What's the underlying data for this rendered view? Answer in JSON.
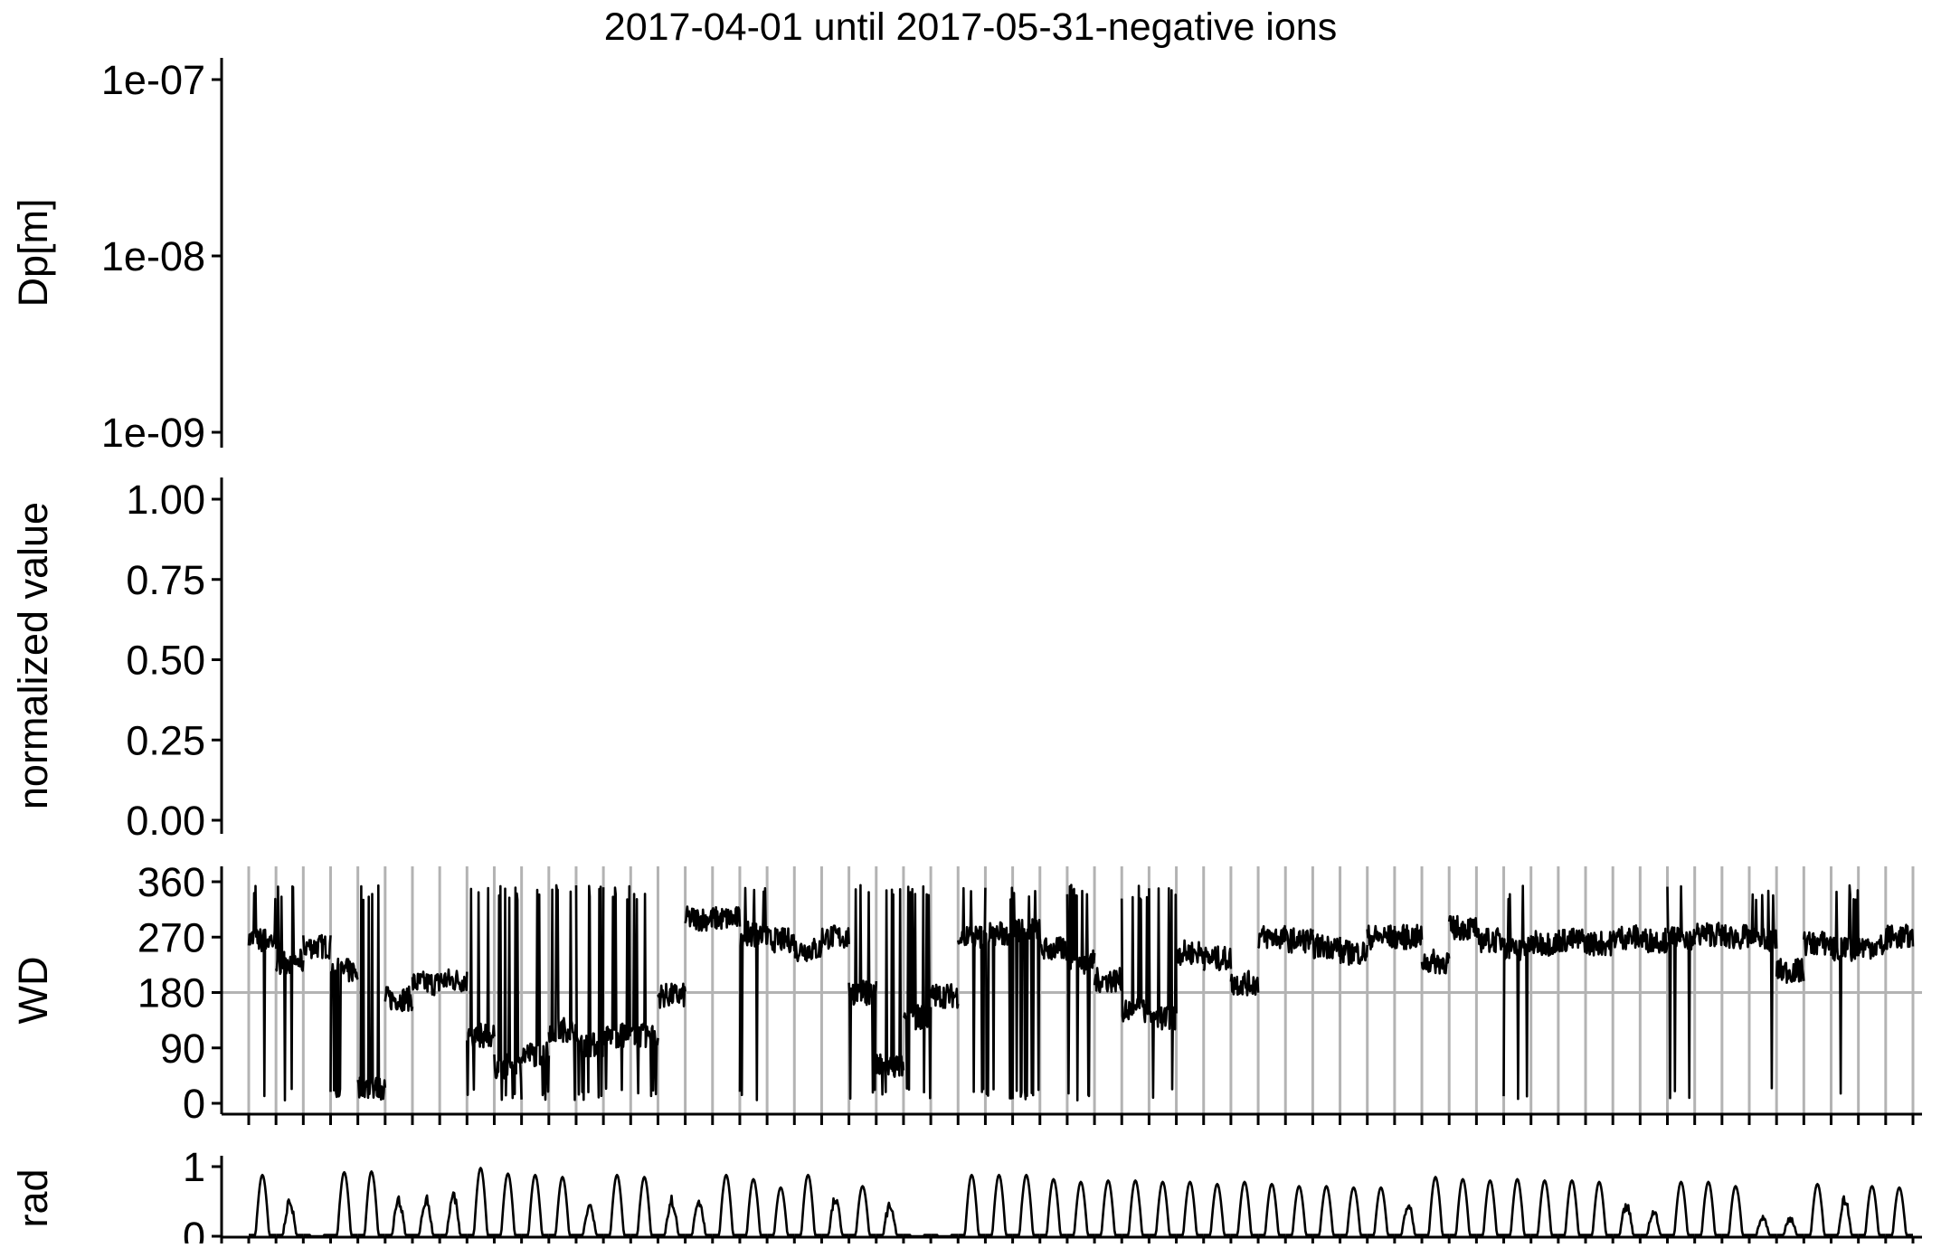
{
  "chart_data": {
    "type": "line",
    "title": "2017-04-01 until 2017-05-31-negative ions",
    "x": {
      "range": [
        "2017-04-01",
        "2017-05-31"
      ],
      "days": 61
    },
    "panels": [
      {
        "id": "dp",
        "type": "heatmap",
        "ylabel": "Dp[m]",
        "yscale": "log",
        "ylim": [
          1e-09,
          1e-07
        ],
        "yticks": [
          "1e-09",
          "1e-08",
          "1e-07"
        ],
        "values": []
      },
      {
        "id": "normalized",
        "type": "line",
        "ylabel": "normalized value",
        "ylim": [
          0,
          1
        ],
        "yticks": [
          "0.00",
          "0.25",
          "0.50",
          "0.75",
          "1.00"
        ],
        "values": []
      },
      {
        "id": "wd",
        "type": "line",
        "ylabel": "WD",
        "ylim": [
          0,
          360
        ],
        "yticks": [
          "0",
          "90",
          "180",
          "270",
          "360"
        ],
        "reference_line": 180,
        "daily_gridlines": true,
        "daily_mean": [
          [
            1,
            265
          ],
          [
            2,
            230
          ],
          [
            3,
            255
          ],
          [
            4,
            215
          ],
          [
            5,
            25
          ],
          [
            6,
            170
          ],
          [
            7,
            195
          ],
          [
            8,
            200
          ],
          [
            9,
            110
          ],
          [
            10,
            60
          ],
          [
            11,
            80
          ],
          [
            12,
            120
          ],
          [
            13,
            95
          ],
          [
            14,
            110
          ],
          [
            15,
            110
          ],
          [
            16,
            175
          ],
          [
            17,
            300
          ],
          [
            18,
            300
          ],
          [
            19,
            275
          ],
          [
            20,
            265
          ],
          [
            21,
            250
          ],
          [
            22,
            270
          ],
          [
            23,
            180
          ],
          [
            24,
            60
          ],
          [
            25,
            140
          ],
          [
            26,
            175
          ],
          [
            27,
            270
          ],
          [
            28,
            275
          ],
          [
            29,
            280
          ],
          [
            30,
            250
          ],
          [
            31,
            230
          ],
          [
            32,
            200
          ],
          [
            33,
            150
          ],
          [
            34,
            140
          ],
          [
            35,
            245
          ],
          [
            36,
            235
          ],
          [
            37,
            195
          ],
          [
            38,
            270
          ],
          [
            39,
            265
          ],
          [
            40,
            255
          ],
          [
            41,
            245
          ],
          [
            42,
            270
          ],
          [
            43,
            270
          ],
          [
            44,
            230
          ],
          [
            45,
            285
          ],
          [
            46,
            265
          ],
          [
            47,
            250
          ],
          [
            48,
            260
          ],
          [
            49,
            265
          ],
          [
            50,
            260
          ],
          [
            51,
            270
          ],
          [
            52,
            265
          ],
          [
            53,
            270
          ],
          [
            54,
            275
          ],
          [
            55,
            270
          ],
          [
            56,
            265
          ],
          [
            57,
            215
          ],
          [
            58,
            260
          ],
          [
            59,
            250
          ],
          [
            60,
            255
          ],
          [
            61,
            270
          ]
        ]
      },
      {
        "id": "rad",
        "type": "line",
        "ylabel": "rad",
        "ylim": [
          0,
          1
        ],
        "yticks": [
          "0",
          "1"
        ],
        "daily_peak": [
          0.88,
          0.55,
          0.0,
          0.92,
          0.93,
          0.58,
          0.6,
          0.65,
          0.98,
          0.9,
          0.88,
          0.85,
          0.5,
          0.88,
          0.85,
          0.6,
          0.6,
          0.88,
          0.82,
          0.7,
          0.88,
          0.6,
          0.72,
          0.5,
          0.0,
          0.0,
          0.88,
          0.88,
          0.88,
          0.82,
          0.78,
          0.8,
          0.8,
          0.78,
          0.78,
          0.75,
          0.78,
          0.75,
          0.72,
          0.72,
          0.7,
          0.7,
          0.5,
          0.85,
          0.82,
          0.8,
          0.82,
          0.8,
          0.8,
          0.78,
          0.5,
          0.4,
          0.78,
          0.78,
          0.72,
          0.3,
          0.3,
          0.75,
          0.6,
          0.72,
          0.7
        ]
      }
    ]
  }
}
